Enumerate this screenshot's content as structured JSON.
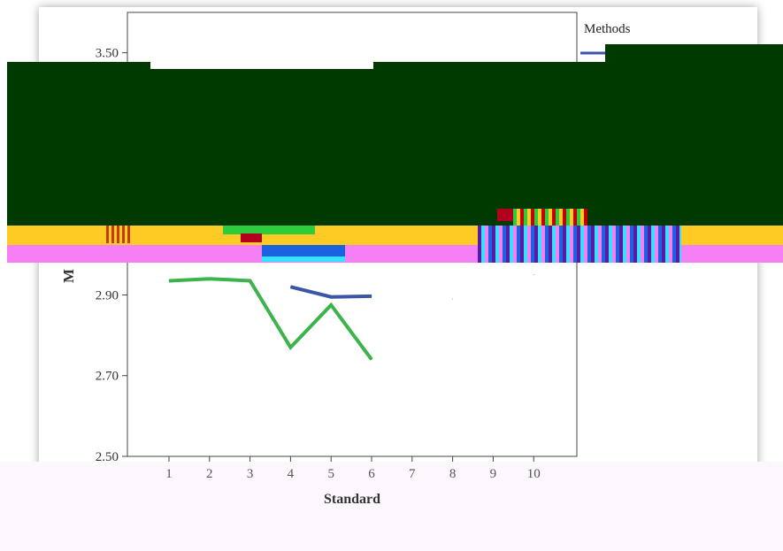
{
  "chart_data": {
    "type": "line",
    "title": "",
    "xlabel": "Standard",
    "ylabel": "M",
    "ylim": [
      2.5,
      3.6
    ],
    "x": [
      1,
      2,
      3,
      4,
      5,
      6,
      7,
      8,
      9,
      10
    ],
    "x_ticks": [
      "1",
      "2",
      "3",
      "4",
      "5",
      "6",
      "7",
      "8",
      "9",
      "10"
    ],
    "y_ticks": [
      "2.50",
      "2.70",
      "2.90",
      "3.50"
    ],
    "legend_title": "Methods",
    "legend_position": "right",
    "series": [
      {
        "color": "#3c55a5",
        "values": [
          null,
          null,
          null,
          2.92,
          2.895,
          2.897,
          null,
          null,
          null,
          null
        ]
      },
      {
        "color": "#3cb44b",
        "values": [
          2.935,
          2.94,
          2.935,
          2.77,
          2.875,
          2.74,
          null,
          2.89,
          null,
          2.95
        ]
      }
    ],
    "grid": false
  },
  "colors": {
    "dark_band": "#003a00",
    "yellow_band": "#fdcb23",
    "magenta_band": "#f57ff4"
  }
}
